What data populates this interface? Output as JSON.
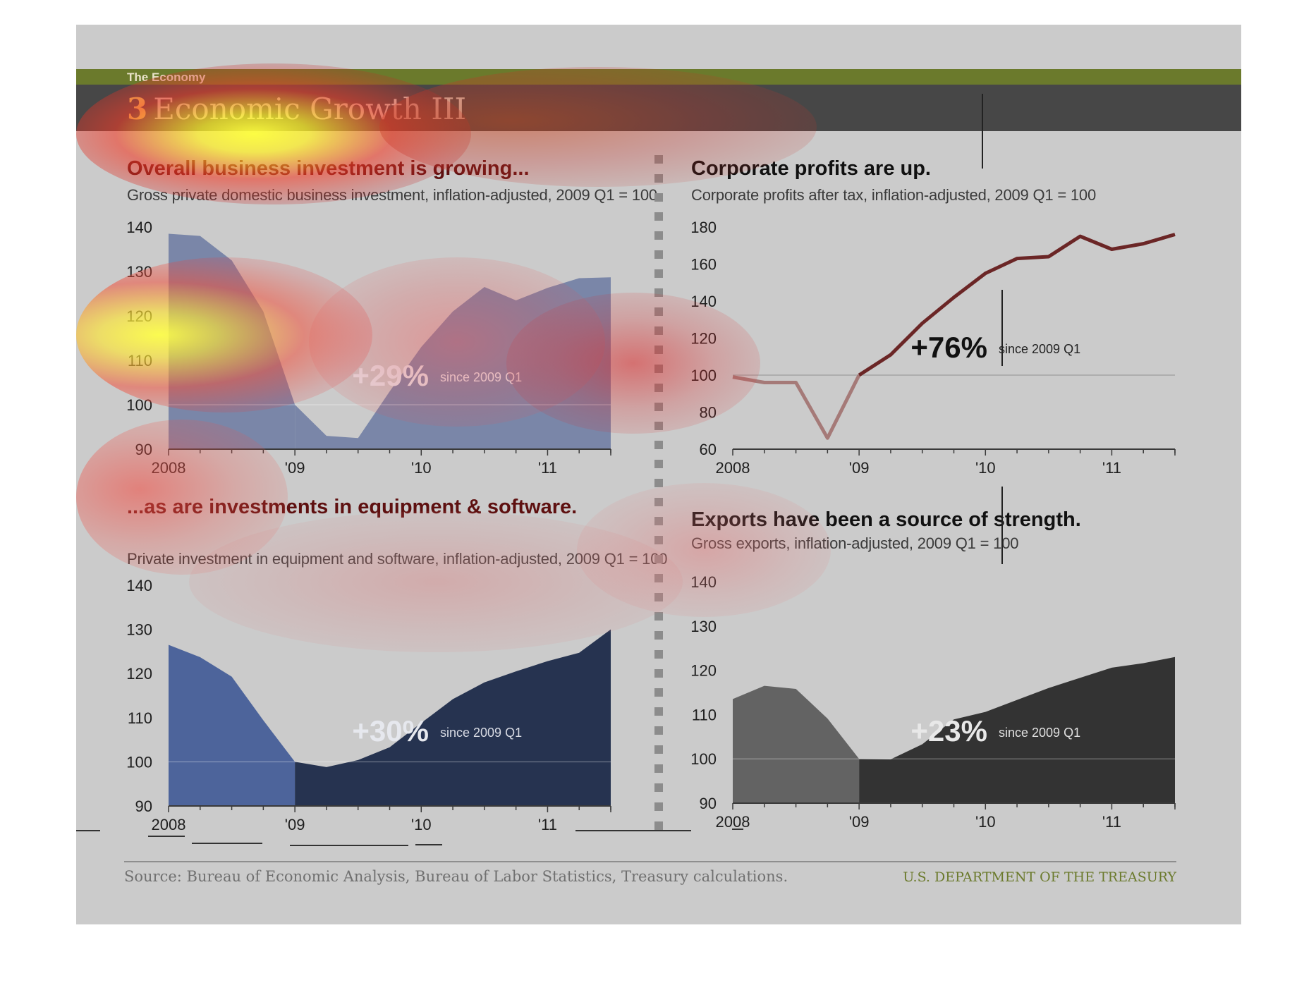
{
  "header": {
    "section": "The Economy",
    "number": "3",
    "title": "Economic Growth III"
  },
  "footer": {
    "source": "Source: Bureau of Economic Analysis, Bureau of Labor Statistics, Treasury calculations.",
    "agency": "U.S. DEPARTMENT OF THE TREASURY"
  },
  "panels": [
    {
      "title": "Overall business investment is growing...",
      "subtitle": "Gross private domestic business investment, inflation-adjusted, 2009 Q1 = 100",
      "title_color": "#5e1010"
    },
    {
      "title": "Corporate profits are up.",
      "subtitle": "Corporate profits after tax, inflation-adjusted, 2009 Q1 = 100",
      "title_color": "#111111"
    },
    {
      "title": "...as are investments in equipment & software.",
      "subtitle": "Private investment in equipment and software, inflation-adjusted, 2009 Q1 = 100",
      "title_color": "#5e1010"
    },
    {
      "title": "Exports have been a source of strength.",
      "subtitle": "Gross exports, inflation-adjusted, 2009 Q1 = 100",
      "title_color": "#111111"
    }
  ],
  "chart_data": [
    {
      "type": "area",
      "title": "Overall business investment is growing...",
      "subtitle": "Gross private domestic business investment, inflation-adjusted, 2009 Q1 = 100",
      "x": [
        "2008 Q1",
        "2008 Q2",
        "2008 Q3",
        "2008 Q4",
        "2009 Q1",
        "2009 Q2",
        "2009 Q3",
        "2009 Q4",
        "2010 Q1",
        "2010 Q2",
        "2010 Q3",
        "2010 Q4",
        "2011 Q1",
        "2011 Q2",
        "2011 Q3"
      ],
      "values": [
        138.5,
        138,
        132.5,
        121,
        100,
        93,
        92.5,
        103,
        113,
        121,
        126.5,
        123.5,
        126.3,
        128.5,
        128.7
      ],
      "ylim": [
        90,
        140
      ],
      "yticks": [
        "140",
        "130",
        "120",
        "110",
        "100",
        "90"
      ],
      "xtick_labels": [
        "2008",
        "'09",
        "'10",
        "'11"
      ],
      "baseline": 100,
      "annotation": {
        "value": "+29%",
        "note": "since 2009 Q1"
      },
      "colors": {
        "before": "#7a86a8",
        "after": "#7a86a8",
        "value_text": "#e6e8ee",
        "note_text": "#e6e8ee"
      }
    },
    {
      "type": "line",
      "title": "Corporate profits are up.",
      "subtitle": "Corporate profits after tax, inflation-adjusted, 2009 Q1 = 100",
      "x": [
        "2008 Q1",
        "2008 Q2",
        "2008 Q3",
        "2008 Q4",
        "2009 Q1",
        "2009 Q2",
        "2009 Q3",
        "2009 Q4",
        "2010 Q1",
        "2010 Q2",
        "2010 Q3",
        "2010 Q4",
        "2011 Q1",
        "2011 Q2",
        "2011 Q3"
      ],
      "values": [
        99,
        96,
        96,
        66,
        100,
        111,
        128,
        142,
        155,
        163,
        164,
        175,
        168,
        171,
        176
      ],
      "ylim": [
        60,
        180
      ],
      "yticks": [
        "180",
        "160",
        "140",
        "120",
        "100",
        "80",
        "60"
      ],
      "xtick_labels": [
        "2008",
        "'09",
        "'10",
        "'11"
      ],
      "baseline": 100,
      "annotation": {
        "value": "+76%",
        "note": "since 2009 Q1"
      },
      "colors": {
        "before": "#a57a78",
        "after": "#6b2626",
        "value_text": "#111111",
        "note_text": "#222222"
      }
    },
    {
      "type": "area",
      "title": "...as are investments in equipment & software.",
      "subtitle": "Private investment in equipment and software, inflation-adjusted, 2009 Q1 = 100",
      "x": [
        "2008 Q1",
        "2008 Q2",
        "2008 Q3",
        "2008 Q4",
        "2009 Q1",
        "2009 Q2",
        "2009 Q3",
        "2009 Q4",
        "2010 Q1",
        "2010 Q2",
        "2010 Q3",
        "2010 Q4",
        "2011 Q1",
        "2011 Q2",
        "2011 Q3"
      ],
      "values": [
        126.5,
        123.7,
        119.3,
        109.4,
        100,
        98.8,
        100.4,
        103.3,
        108.8,
        114.2,
        118,
        120.5,
        122.8,
        124.7,
        130
      ],
      "ylim": [
        90,
        140
      ],
      "yticks": [
        "140",
        "130",
        "120",
        "110",
        "100",
        "90"
      ],
      "xtick_labels": [
        "2008",
        "'09",
        "'10",
        "'11"
      ],
      "baseline": 100,
      "annotation": {
        "value": "+30%",
        "note": "since 2009 Q1"
      },
      "colors": {
        "before": "#4d649b",
        "after": "#263350",
        "value_text": "#e6e8ee",
        "note_text": "#d8dbe4"
      }
    },
    {
      "type": "area",
      "title": "Exports have been a source of strength.",
      "subtitle": "Gross exports, inflation-adjusted, 2009 Q1 = 100",
      "x": [
        "2008 Q1",
        "2008 Q2",
        "2008 Q3",
        "2008 Q4",
        "2009 Q1",
        "2009 Q2",
        "2009 Q3",
        "2009 Q4",
        "2010 Q1",
        "2010 Q2",
        "2010 Q3",
        "2010 Q4",
        "2011 Q1",
        "2011 Q2",
        "2011 Q3"
      ],
      "values": [
        113.5,
        116.5,
        115.8,
        109.1,
        100,
        99.9,
        103.3,
        108.9,
        110.6,
        113.3,
        116,
        118.3,
        120.6,
        121.6,
        123
      ],
      "ylim": [
        90,
        140
      ],
      "yticks": [
        "140",
        "130",
        "120",
        "110",
        "100",
        "90"
      ],
      "xtick_labels": [
        "2008",
        "'09",
        "'10",
        "'11"
      ],
      "baseline": 100,
      "annotation": {
        "value": "+23%",
        "note": "since 2009 Q1"
      },
      "colors": {
        "before": "#636363",
        "after": "#333333",
        "value_text": "#e8e8e8",
        "note_text": "#e0e0e0"
      }
    }
  ]
}
